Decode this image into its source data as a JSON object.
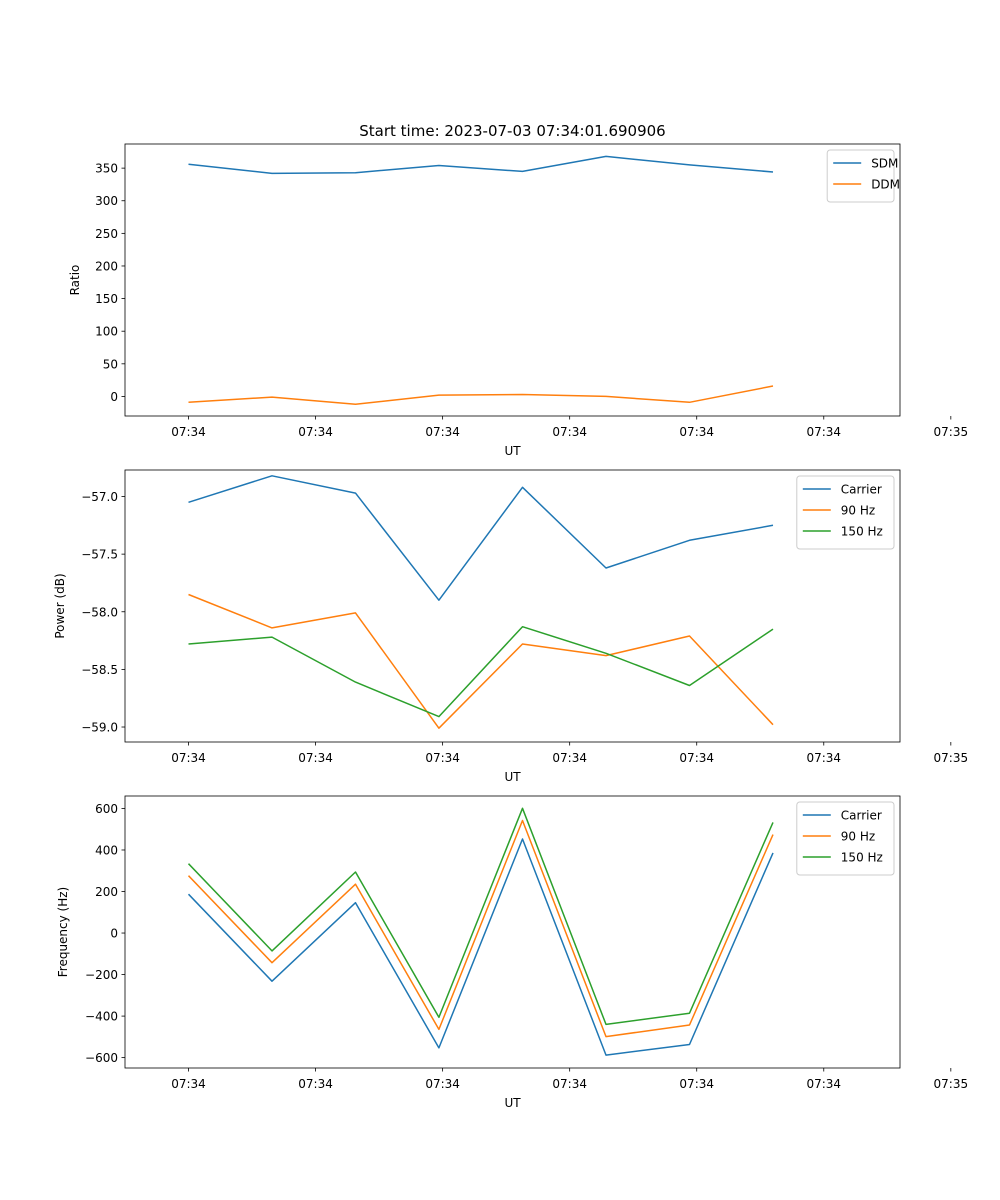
{
  "title": "Start time: 2023-07-03 07:34:01.690906",
  "chart_data": [
    {
      "type": "line",
      "title": "Start time: 2023-07-03 07:34:01.690906",
      "xlabel": "UT",
      "ylabel": "Ratio",
      "xlim": [
        -0.5,
        5.6
      ],
      "ylim": [
        -30,
        387
      ],
      "yticks": [
        0,
        50,
        100,
        150,
        200,
        250,
        300,
        350
      ],
      "xticks": [
        {
          "x": 0,
          "label": "07:34"
        },
        {
          "x": 1,
          "label": "07:34"
        },
        {
          "x": 2,
          "label": "07:34"
        },
        {
          "x": 3,
          "label": "07:34"
        },
        {
          "x": 4,
          "label": "07:34"
        },
        {
          "x": 5,
          "label": "07:34"
        },
        {
          "x": 6,
          "label": "07:35"
        }
      ],
      "x": [
        0,
        0.657,
        1.314,
        1.971,
        2.629,
        3.286,
        3.943,
        4.6
      ],
      "legend": "top-right",
      "series": [
        {
          "name": "SDM",
          "color": "#1f77b4",
          "values": [
            356,
            342,
            343,
            354,
            345,
            368,
            355,
            344
          ]
        },
        {
          "name": "DDM",
          "color": "#ff7f0e",
          "values": [
            -9,
            -1,
            -12,
            2,
            3,
            0,
            -9,
            16
          ]
        }
      ]
    },
    {
      "type": "line",
      "xlabel": "UT",
      "ylabel": "Power (dB)",
      "xlim": [
        -0.5,
        5.6
      ],
      "ylim": [
        -59.13,
        -56.77
      ],
      "yticks": [
        -59.0,
        -58.5,
        -58.0,
        -57.5,
        -57.0
      ],
      "ytick_labels": [
        "−59.0",
        "−58.5",
        "−58.0",
        "−57.5",
        "−57.0"
      ],
      "xticks": [
        {
          "x": 0,
          "label": "07:34"
        },
        {
          "x": 1,
          "label": "07:34"
        },
        {
          "x": 2,
          "label": "07:34"
        },
        {
          "x": 3,
          "label": "07:34"
        },
        {
          "x": 4,
          "label": "07:34"
        },
        {
          "x": 5,
          "label": "07:34"
        },
        {
          "x": 6,
          "label": "07:35"
        }
      ],
      "x": [
        0,
        0.657,
        1.314,
        1.971,
        2.629,
        3.286,
        3.943,
        4.6
      ],
      "legend": "top-right",
      "series": [
        {
          "name": "Carrier",
          "color": "#1f77b4",
          "values": [
            -57.05,
            -56.82,
            -56.97,
            -57.9,
            -56.92,
            -57.62,
            -57.38,
            -57.25
          ]
        },
        {
          "name": "90 Hz",
          "color": "#ff7f0e",
          "values": [
            -57.85,
            -58.14,
            -58.01,
            -59.01,
            -58.28,
            -58.38,
            -58.21,
            -58.98
          ]
        },
        {
          "name": "150 Hz",
          "color": "#2ca02c",
          "values": [
            -58.28,
            -58.22,
            -58.61,
            -58.91,
            -58.13,
            -58.36,
            -58.64,
            -58.15
          ]
        }
      ]
    },
    {
      "type": "line",
      "xlabel": "UT",
      "ylabel": "Frequency (Hz)",
      "xlim": [
        -0.5,
        5.6
      ],
      "ylim": [
        -650,
        660
      ],
      "yticks": [
        -600,
        -400,
        -200,
        0,
        200,
        400,
        600
      ],
      "ytick_labels": [
        "−600",
        "−400",
        "−200",
        "0",
        "200",
        "400",
        "600"
      ],
      "xticks": [
        {
          "x": 0,
          "label": "07:34"
        },
        {
          "x": 1,
          "label": "07:34"
        },
        {
          "x": 2,
          "label": "07:34"
        },
        {
          "x": 3,
          "label": "07:34"
        },
        {
          "x": 4,
          "label": "07:34"
        },
        {
          "x": 5,
          "label": "07:34"
        },
        {
          "x": 6,
          "label": "07:35"
        }
      ],
      "x": [
        0,
        0.657,
        1.314,
        1.971,
        2.629,
        3.286,
        3.943,
        4.6
      ],
      "legend": "top-right",
      "series": [
        {
          "name": "Carrier",
          "color": "#1f77b4",
          "values": [
            187,
            -232,
            146,
            -553,
            453,
            -588,
            -537,
            386
          ]
        },
        {
          "name": "90 Hz",
          "color": "#ff7f0e",
          "values": [
            276,
            -143,
            235,
            -464,
            542,
            -499,
            -443,
            474
          ]
        },
        {
          "name": "150 Hz",
          "color": "#2ca02c",
          "values": [
            334,
            -86,
            294,
            -406,
            601,
            -440,
            -386,
            533
          ]
        }
      ]
    }
  ]
}
